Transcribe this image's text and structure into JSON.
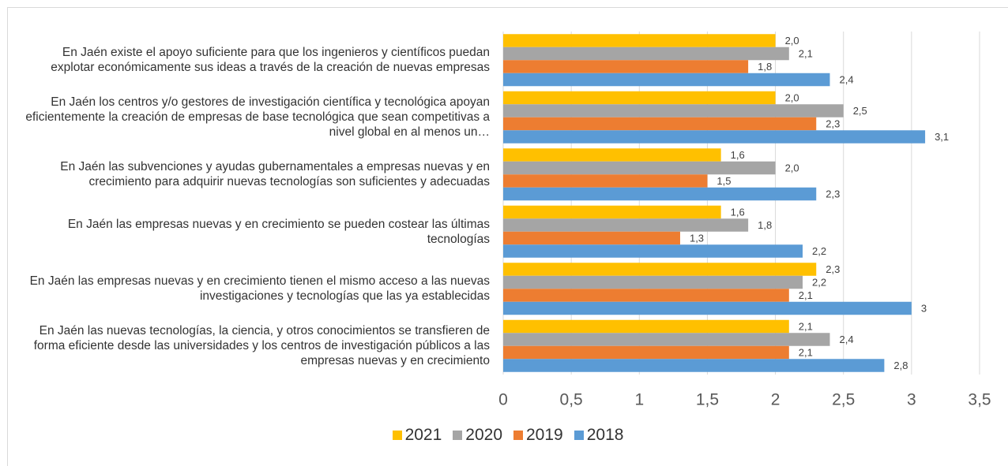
{
  "chart_data": {
    "type": "bar",
    "orientation": "horizontal",
    "categories": [
      "En Jaén existe el apoyo suficiente para que los ingenieros y científicos puedan explotar económicamente sus ideas a través de la creación de nuevas empresas",
      "En Jaén los centros y/o gestores de investigación científica y tecnológica apoyan eficientemente la creación de empresas de base tecnológica que sean competitivas a nivel global en al menos un…",
      "En Jaén las subvenciones y ayudas gubernamentales a empresas nuevas y en crecimiento para adquirir nuevas tecnologías son suficientes y adecuadas",
      "En Jaén las empresas nuevas y en crecimiento se pueden costear las últimas tecnologías",
      "En Jaén las empresas nuevas y en crecimiento tienen el mismo acceso a las nuevas investigaciones y tecnologías que las ya establecidas",
      "En Jaén las nuevas tecnologías, la ciencia, y otros conocimientos se transfieren de forma eficiente desde las universidades y los centros de investigación públicos a las empresas nuevas y en crecimiento"
    ],
    "series": [
      {
        "name": "2021",
        "color": "#ffc000",
        "values": [
          2.0,
          2.0,
          1.6,
          1.6,
          2.3,
          2.1
        ],
        "value_labels": [
          "2,0",
          "2,0",
          "1,6",
          "1,6",
          "2,3",
          "2,1"
        ]
      },
      {
        "name": "2020",
        "color": "#a5a5a5",
        "values": [
          2.1,
          2.5,
          2.0,
          1.8,
          2.2,
          2.4
        ],
        "value_labels": [
          "2,1",
          "2,5",
          "2,0",
          "1,8",
          "2,2",
          "2,4"
        ]
      },
      {
        "name": "2019",
        "color": "#ed7d31",
        "values": [
          1.8,
          2.3,
          1.5,
          1.3,
          2.1,
          2.1
        ],
        "value_labels": [
          "1,8",
          "2,3",
          "1,5",
          "1,3",
          "2,1",
          "2,1"
        ]
      },
      {
        "name": "2018",
        "color": "#5b9bd5",
        "values": [
          2.4,
          3.1,
          2.3,
          2.2,
          3,
          2.8
        ],
        "value_labels": [
          "2,4",
          "3,1",
          "2,3",
          "2,2",
          "3",
          "2,8"
        ]
      }
    ],
    "xlim": [
      0,
      3.5
    ],
    "xticks": [
      0,
      {
        "value": 0.5,
        "label": "0,5"
      },
      1,
      {
        "value": 1.5,
        "label": "1,5"
      },
      2,
      {
        "value": 2.5,
        "label": "2,5"
      },
      3,
      {
        "value": 3.5,
        "label": "3,5"
      }
    ],
    "grid": true,
    "legend": "bottom"
  }
}
